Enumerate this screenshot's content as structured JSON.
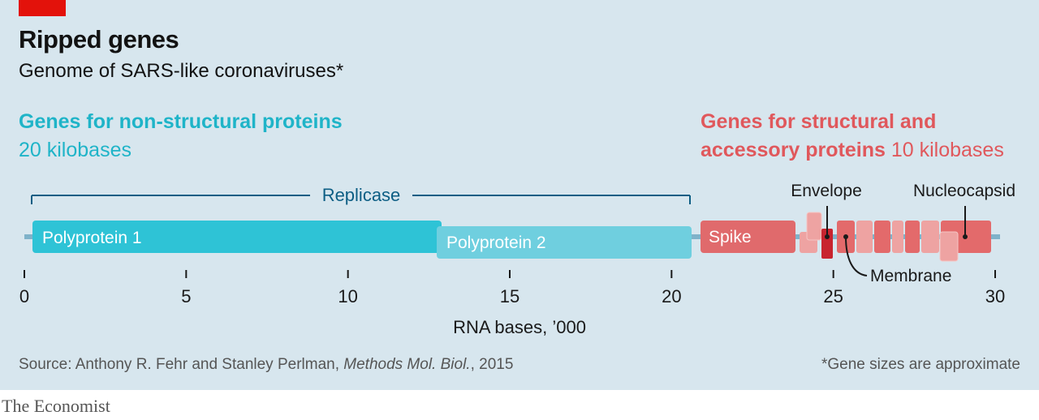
{
  "title": "Ripped genes",
  "subtitle": "Genome of SARS-like coronaviruses*",
  "groups": {
    "nonstructural_title": "Genes for non-structural proteins",
    "nonstructural_size": "20 kilobases",
    "structural_title_line1": "Genes for structural and",
    "structural_title_line2": "accessory proteins",
    "structural_size": "10 kilobases"
  },
  "colors": {
    "nonstructural": "#1fb4c8",
    "structural": "#e0585c",
    "polyprotein1": "#2ec3d6",
    "polyprotein2": "#6fcfdf",
    "spike": "#e06a6c",
    "structural_main": "#e36a6b",
    "structural_light": "#eea3a2",
    "envelope": "#c8242f",
    "replicase_bracket": "#0d5e84",
    "genome_line": "#7fb2c9"
  },
  "source_prefix": "Source: Anthony R. Fehr and Stanley Perlman, ",
  "source_journal": "Methods Mol. Biol.",
  "source_suffix": ", 2015",
  "footnote": "*Gene sizes are approximate",
  "brand": "The Economist",
  "chart_data": {
    "type": "bar",
    "xlabel": "RNA bases, ’000",
    "xlim": [
      0,
      30
    ],
    "ticks": [
      "0",
      "5",
      "10",
      "15",
      "20",
      "25",
      "30"
    ],
    "replicase": {
      "label": "Replicase",
      "start": 0.25,
      "end": 20.6
    },
    "genes": [
      {
        "name": "Polyprotein 1",
        "start": 0.25,
        "end": 12.9,
        "group": "non-structural"
      },
      {
        "name": "Polyprotein 2",
        "start": 12.9,
        "end": 20.6,
        "group": "non-structural"
      },
      {
        "name": "Spike",
        "start": 21.5,
        "end": 25.3,
        "group": "structural"
      },
      {
        "name": "Envelope",
        "start": 25.4,
        "end": 25.8,
        "group": "structural"
      },
      {
        "name": "Membrane",
        "start": 25.8,
        "end": 26.5,
        "group": "structural"
      },
      {
        "name": "Nucleocapsid",
        "start": 28.3,
        "end": 29.6,
        "group": "structural"
      }
    ],
    "annotations": [
      "Envelope",
      "Nucleocapsid",
      "Membrane"
    ]
  }
}
